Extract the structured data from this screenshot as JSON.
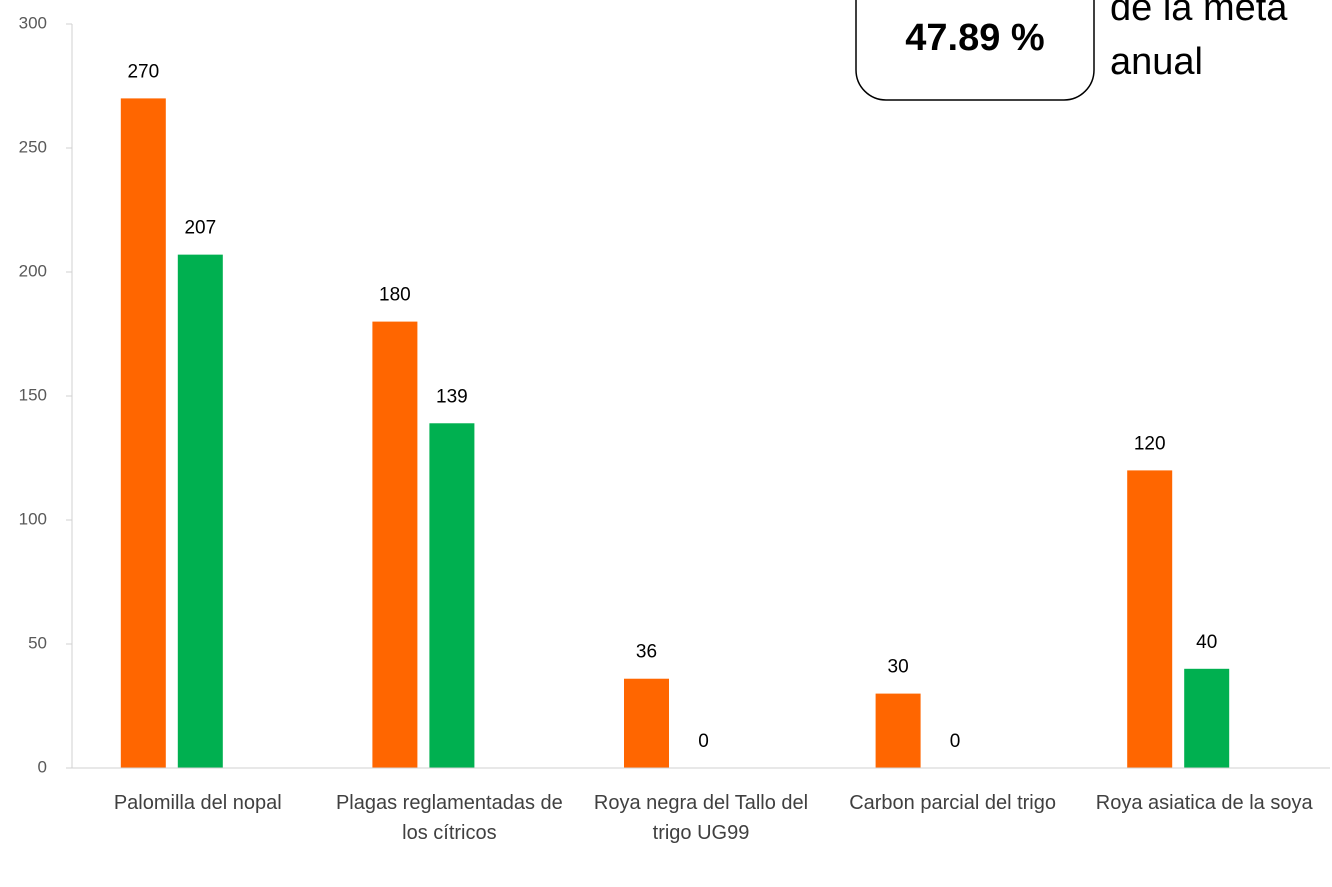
{
  "chart_data": {
    "type": "bar",
    "categories": [
      "Palomilla del nopal",
      "Plagas reglamentadas de los cítricos",
      "Roya negra del Tallo del trigo UG99",
      "Carbon parcial del trigo",
      "Roya asiatica de la soya"
    ],
    "series": [
      {
        "color": "#ff6600",
        "values": [
          270,
          180,
          36,
          30,
          120
        ]
      },
      {
        "color": "#00b050",
        "values": [
          207,
          139,
          0,
          0,
          40
        ]
      }
    ],
    "ylim": [
      0,
      300
    ],
    "yticks": [
      0,
      50,
      100,
      150,
      200,
      250,
      300
    ],
    "annotation": {
      "value": "47.89 %",
      "text": [
        "de la meta",
        "anual"
      ]
    }
  }
}
